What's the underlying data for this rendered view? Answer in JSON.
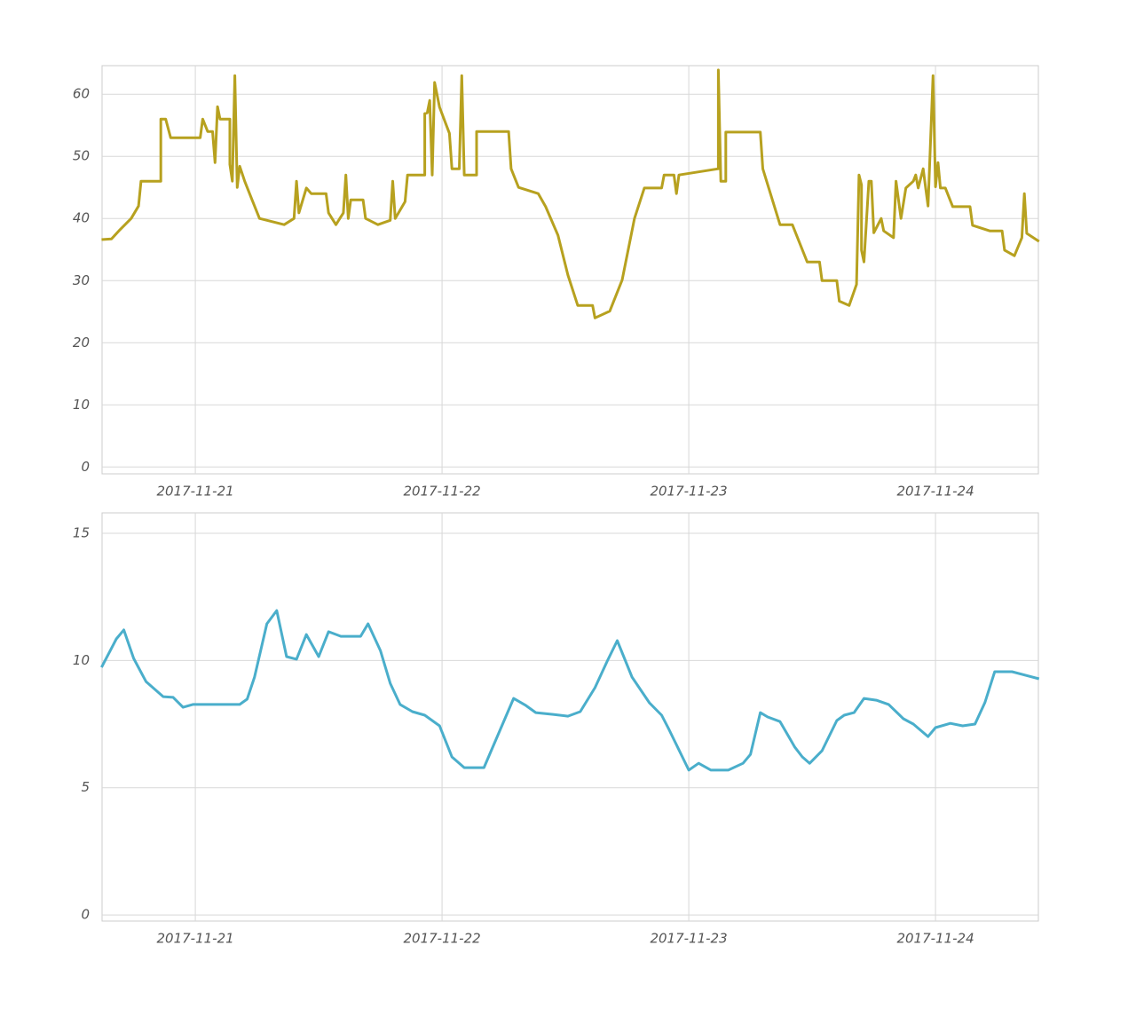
{
  "chart_data": [
    {
      "type": "line",
      "color": "#b7a11f",
      "grid": true,
      "xlim": [
        -0.378,
        3.417
      ],
      "ylim": [
        -1.1,
        64.6
      ],
      "xticks": [
        {
          "value": 0,
          "label": "2017-11-21"
        },
        {
          "value": 1,
          "label": "2017-11-22"
        },
        {
          "value": 2,
          "label": "2017-11-23"
        },
        {
          "value": 3,
          "label": "2017-11-24"
        }
      ],
      "yticks": [
        0,
        10,
        20,
        30,
        40,
        50,
        60
      ],
      "x": [
        -0.38,
        -0.34,
        -0.31,
        -0.26,
        -0.23,
        -0.22,
        -0.14,
        -0.14,
        -0.12,
        -0.1,
        0.02,
        0.03,
        0.05,
        0.07,
        0.08,
        0.09,
        0.1,
        0.14,
        0.14,
        0.15,
        0.16,
        0.17,
        0.18,
        0.2,
        0.23,
        0.26,
        0.36,
        0.4,
        0.41,
        0.42,
        0.45,
        0.47,
        0.53,
        0.54,
        0.57,
        0.6,
        0.61,
        0.62,
        0.63,
        0.68,
        0.69,
        0.74,
        0.79,
        0.8,
        0.81,
        0.85,
        0.86,
        0.93,
        0.93,
        0.94,
        0.95,
        0.96,
        0.97,
        0.99,
        1.03,
        1.04,
        1.07,
        1.08,
        1.09,
        1.14,
        1.14,
        1.27,
        1.28,
        1.31,
        1.39,
        1.42,
        1.47,
        1.51,
        1.55,
        1.61,
        1.62,
        1.68,
        1.73,
        1.78,
        1.82,
        1.89,
        1.9,
        1.94,
        1.95,
        1.96,
        2.12,
        2.12,
        2.13,
        2.15,
        2.15,
        2.29,
        2.3,
        2.37,
        2.42,
        2.48,
        2.53,
        2.54,
        2.6,
        2.61,
        2.65,
        2.68,
        2.69,
        2.7,
        2.7,
        2.71,
        2.73,
        2.74,
        2.75,
        2.78,
        2.79,
        2.83,
        2.84,
        2.86,
        2.88,
        2.91,
        2.92,
        2.93,
        2.95,
        2.96,
        2.97,
        2.99,
        3.0,
        3.01,
        3.02,
        3.04,
        3.07,
        3.14,
        3.15,
        3.22,
        3.27,
        3.28,
        3.32,
        3.35,
        3.36,
        3.37,
        3.42
      ],
      "values": [
        36.6,
        36.7,
        38,
        40,
        42,
        46,
        46,
        56,
        56,
        53,
        53,
        56,
        54,
        54,
        49,
        58,
        56,
        56,
        48.7,
        46,
        63,
        45,
        48.4,
        46,
        43,
        40,
        39,
        40,
        46,
        40.9,
        44.9,
        44,
        44,
        40.9,
        39,
        40.9,
        47,
        40,
        43,
        43,
        40,
        39,
        39.7,
        46,
        40,
        42.7,
        47,
        47,
        56.9,
        57,
        59,
        47,
        61.9,
        57.9,
        53.7,
        48,
        48,
        63,
        47,
        47,
        54,
        54,
        48,
        45,
        44,
        41.9,
        37.3,
        30.9,
        26,
        26,
        24,
        25.1,
        30.1,
        40,
        44.9,
        44.9,
        47,
        47,
        44,
        47,
        48,
        63.9,
        46,
        46,
        53.9,
        53.9,
        48,
        39,
        39,
        33,
        33,
        30,
        30,
        26.7,
        26,
        29.4,
        47,
        45.4,
        34.9,
        33,
        46,
        46,
        37.7,
        40,
        38,
        36.9,
        46,
        40,
        44.9,
        46,
        47,
        44.9,
        48,
        44.9,
        42,
        63,
        45.1,
        49,
        44.9,
        44.9,
        41.9,
        41.9,
        38.9,
        38,
        38,
        34.9,
        34,
        36.9,
        44,
        37.6,
        36.3
      ]
    },
    {
      "type": "line",
      "color": "#4aaecb",
      "grid": true,
      "xlim": [
        -0.378,
        3.417
      ],
      "ylim": [
        -0.24,
        15.8
      ],
      "xticks": [
        {
          "value": 0,
          "label": "2017-11-21"
        },
        {
          "value": 1,
          "label": "2017-11-22"
        },
        {
          "value": 2,
          "label": "2017-11-23"
        },
        {
          "value": 3,
          "label": "2017-11-24"
        }
      ],
      "yticks": [
        0,
        5,
        10,
        15
      ],
      "x": [
        -0.38,
        -0.32,
        -0.29,
        -0.25,
        -0.2,
        -0.13,
        -0.09,
        -0.05,
        -0.01,
        0.18,
        0.21,
        0.24,
        0.29,
        0.33,
        0.37,
        0.41,
        0.45,
        0.5,
        0.54,
        0.59,
        0.67,
        0.7,
        0.75,
        0.79,
        0.83,
        0.88,
        0.93,
        0.99,
        1.04,
        1.09,
        1.17,
        1.29,
        1.34,
        1.38,
        1.45,
        1.51,
        1.56,
        1.62,
        1.67,
        1.71,
        1.77,
        1.84,
        1.89,
        1.92,
        2.0,
        2.04,
        2.09,
        2.16,
        2.22,
        2.25,
        2.29,
        2.32,
        2.37,
        2.43,
        2.46,
        2.49,
        2.54,
        2.6,
        2.63,
        2.67,
        2.71,
        2.76,
        2.81,
        2.87,
        2.91,
        2.97,
        3.0,
        3.06,
        3.11,
        3.16,
        3.2,
        3.24,
        3.31,
        3.42
      ],
      "values": [
        9.73,
        10.85,
        11.2,
        10.08,
        9.17,
        8.58,
        8.55,
        8.16,
        8.27,
        8.27,
        8.48,
        9.35,
        11.44,
        11.96,
        10.15,
        10.05,
        11.02,
        10.15,
        11.13,
        10.95,
        10.95,
        11.44,
        10.39,
        9.1,
        8.27,
        7.99,
        7.85,
        7.43,
        6.21,
        5.79,
        5.79,
        8.51,
        8.23,
        7.95,
        7.88,
        7.81,
        7.99,
        8.93,
        9.98,
        10.78,
        9.35,
        8.34,
        7.85,
        7.29,
        5.69,
        5.96,
        5.69,
        5.69,
        5.96,
        6.31,
        7.95,
        7.78,
        7.6,
        6.59,
        6.21,
        5.96,
        6.45,
        7.64,
        7.85,
        7.95,
        8.51,
        8.44,
        8.27,
        7.71,
        7.5,
        7.01,
        7.36,
        7.53,
        7.43,
        7.5,
        8.34,
        9.56,
        9.56,
        9.28
      ]
    }
  ]
}
